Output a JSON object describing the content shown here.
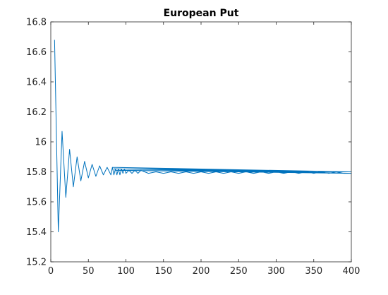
{
  "chart_data": {
    "type": "line",
    "title": "European Put",
    "xlabel": "",
    "ylabel": "",
    "xlim": [
      0,
      400
    ],
    "ylim": [
      15.2,
      16.8
    ],
    "xticks": [
      0,
      50,
      100,
      150,
      200,
      250,
      300,
      350,
      400
    ],
    "yticks": [
      15.2,
      15.4,
      15.6,
      15.8,
      16,
      16.2,
      16.4,
      16.6,
      16.8
    ],
    "xtick_labels": [
      "0",
      "50",
      "100",
      "150",
      "200",
      "250",
      "300",
      "350",
      "400"
    ],
    "ytick_labels": [
      "15.2",
      "15.4",
      "15.6",
      "15.8",
      "16",
      "16.2",
      "16.4",
      "16.6",
      "16.8"
    ],
    "grid": false,
    "line_color": "#0072bd",
    "series": [
      {
        "x": [
          5,
          10,
          15,
          20,
          25,
          30,
          35,
          40,
          45,
          50,
          55,
          60,
          65,
          70,
          75,
          80,
          82,
          84,
          86,
          88,
          90,
          92,
          94,
          96,
          98,
          100,
          104,
          108,
          112,
          116,
          120,
          130,
          140,
          150,
          160,
          170,
          180,
          190,
          200,
          210,
          220,
          230,
          240,
          250,
          260,
          270,
          280,
          290,
          300,
          310,
          320,
          330,
          340,
          350,
          360,
          370,
          380,
          390,
          400,
          82,
          400,
          84,
          400,
          86,
          400
        ],
        "y": [
          16.68,
          15.4,
          16.07,
          15.63,
          15.95,
          15.7,
          15.9,
          15.74,
          15.87,
          15.76,
          15.85,
          15.77,
          15.84,
          15.78,
          15.83,
          15.78,
          15.83,
          15.78,
          15.82,
          15.78,
          15.82,
          15.78,
          15.82,
          15.79,
          15.82,
          15.79,
          15.81,
          15.79,
          15.81,
          15.79,
          15.81,
          15.79,
          15.8,
          15.79,
          15.8,
          15.79,
          15.8,
          15.79,
          15.8,
          15.79,
          15.8,
          15.79,
          15.8,
          15.79,
          15.8,
          15.79,
          15.8,
          15.79,
          15.8,
          15.79,
          15.8,
          15.79,
          15.8,
          15.79,
          15.8,
          15.79,
          15.8,
          15.79,
          15.79,
          15.83,
          15.8,
          15.82,
          15.79,
          15.81,
          15.8
        ]
      }
    ]
  }
}
